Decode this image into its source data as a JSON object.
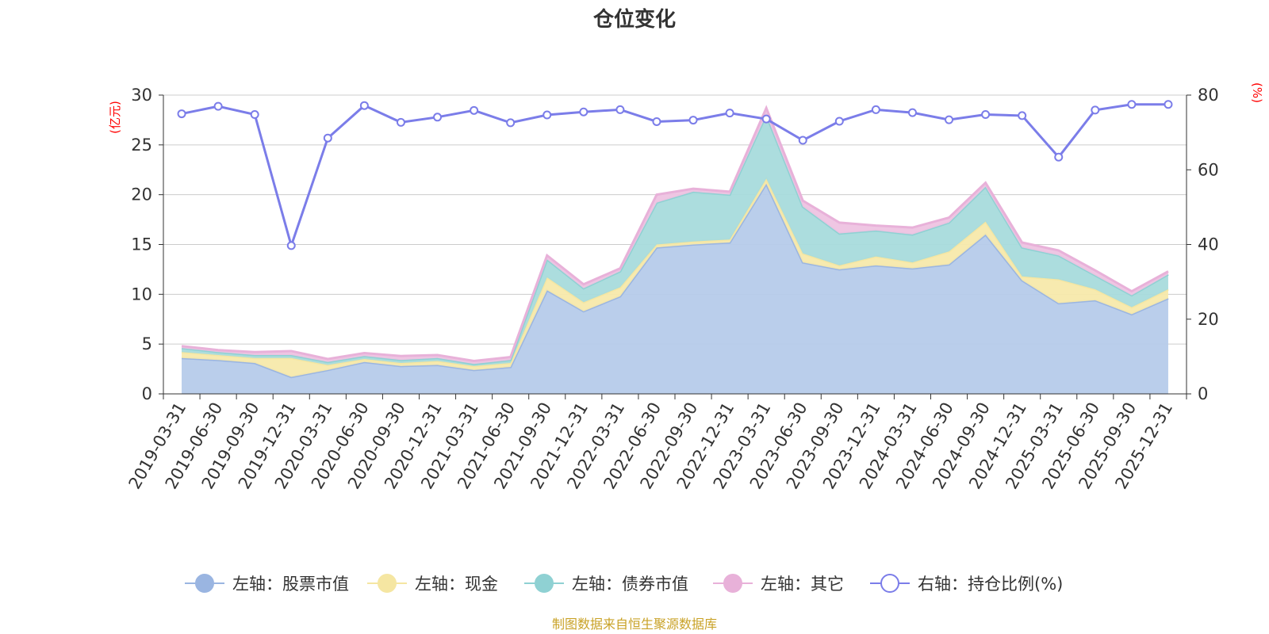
{
  "chart_data": {
    "type": "area",
    "title": "仓位变化",
    "left_axis_unit": "(亿元)",
    "right_axis_unit": "(%)",
    "ylim_left": [
      0,
      30
    ],
    "yticks_left": [
      0,
      5,
      10,
      15,
      20,
      25,
      30
    ],
    "ylim_right": [
      0,
      80
    ],
    "yticks_right": [
      0,
      20,
      40,
      60,
      80
    ],
    "categories": [
      "2019-03-31",
      "2019-06-30",
      "2019-09-30",
      "2019-12-31",
      "2020-03-31",
      "2020-06-30",
      "2020-09-30",
      "2020-12-31",
      "2021-03-31",
      "2021-06-30",
      "2021-09-30",
      "2021-12-31",
      "2022-03-31",
      "2022-06-30",
      "2022-09-30",
      "2022-12-31",
      "2023-03-31",
      "2023-06-30",
      "2023-09-30",
      "2023-12-31",
      "2024-03-31",
      "2024-06-30",
      "2024-09-30",
      "2024-12-31",
      "2025-03-31",
      "2025-06-30",
      "2025-09-30",
      "2025-12-31"
    ],
    "series": [
      {
        "name": "左轴：股票市值",
        "axis": "left",
        "stack": true,
        "color": "#9ab5e1",
        "fill": "#b6cbea",
        "values": [
          3.6,
          3.4,
          3.1,
          1.7,
          2.4,
          3.2,
          2.8,
          2.9,
          2.4,
          2.7,
          10.4,
          8.3,
          9.8,
          14.7,
          15.0,
          15.2,
          21.1,
          13.2,
          12.5,
          12.9,
          12.6,
          13.0,
          16.0,
          11.4,
          9.1,
          9.4,
          8.0,
          9.6
        ]
      },
      {
        "name": "左轴：现金",
        "axis": "left",
        "stack": true,
        "color": "#f5e6a2",
        "fill": "#f7e9ab",
        "values": [
          0.6,
          0.5,
          0.5,
          1.9,
          0.5,
          0.3,
          0.3,
          0.4,
          0.4,
          0.4,
          1.3,
          0.9,
          0.9,
          0.3,
          0.3,
          0.3,
          0.5,
          0.9,
          0.4,
          0.9,
          0.6,
          1.3,
          1.3,
          0.4,
          2.4,
          1.1,
          0.7,
          0.9
        ]
      },
      {
        "name": "左轴：债券市值",
        "axis": "left",
        "stack": true,
        "color": "#8fd1d3",
        "fill": "#a8dbdc",
        "values": [
          0.4,
          0.3,
          0.3,
          0.3,
          0.3,
          0.3,
          0.3,
          0.3,
          0.2,
          0.3,
          1.8,
          1.4,
          1.6,
          4.2,
          5.0,
          4.5,
          6.4,
          4.7,
          3.2,
          2.6,
          2.8,
          2.9,
          3.5,
          2.9,
          2.4,
          1.4,
          1.2,
          1.5
        ]
      },
      {
        "name": "左轴：其它",
        "axis": "left",
        "stack": true,
        "color": "#e8b1d9",
        "fill": "#eec3e1",
        "values": [
          0.2,
          0.2,
          0.3,
          0.4,
          0.3,
          0.3,
          0.4,
          0.3,
          0.3,
          0.3,
          0.4,
          0.4,
          0.3,
          0.8,
          0.3,
          0.3,
          0.7,
          0.6,
          1.1,
          0.5,
          0.7,
          0.5,
          0.4,
          0.5,
          0.5,
          0.5,
          0.4,
          0.3
        ]
      },
      {
        "name": "右轴：持仓比例(%)",
        "axis": "right",
        "stack": false,
        "color": "#7b7de9",
        "values": [
          75.0,
          77.0,
          74.8,
          39.7,
          68.5,
          77.2,
          72.7,
          74.1,
          75.9,
          72.6,
          74.7,
          75.5,
          76.1,
          72.9,
          73.3,
          75.2,
          73.6,
          67.9,
          73.0,
          76.1,
          75.3,
          73.4,
          74.8,
          74.5,
          63.4,
          76.0,
          77.5,
          77.5
        ]
      }
    ],
    "legend": [
      {
        "label": "左轴：股票市值",
        "color": "#9ab5e1",
        "filled": true
      },
      {
        "label": "左轴：现金",
        "color": "#f5e6a2",
        "filled": true
      },
      {
        "label": "左轴：债券市值",
        "color": "#8fd1d3",
        "filled": true
      },
      {
        "label": "左轴：其它",
        "color": "#e8b1d9",
        "filled": true
      },
      {
        "label": "右轴：持仓比例(%)",
        "color": "#7b7de9",
        "filled": false
      }
    ],
    "legend_position": "bottom",
    "grid": true,
    "source": "制图数据来自恒生聚源数据库"
  }
}
